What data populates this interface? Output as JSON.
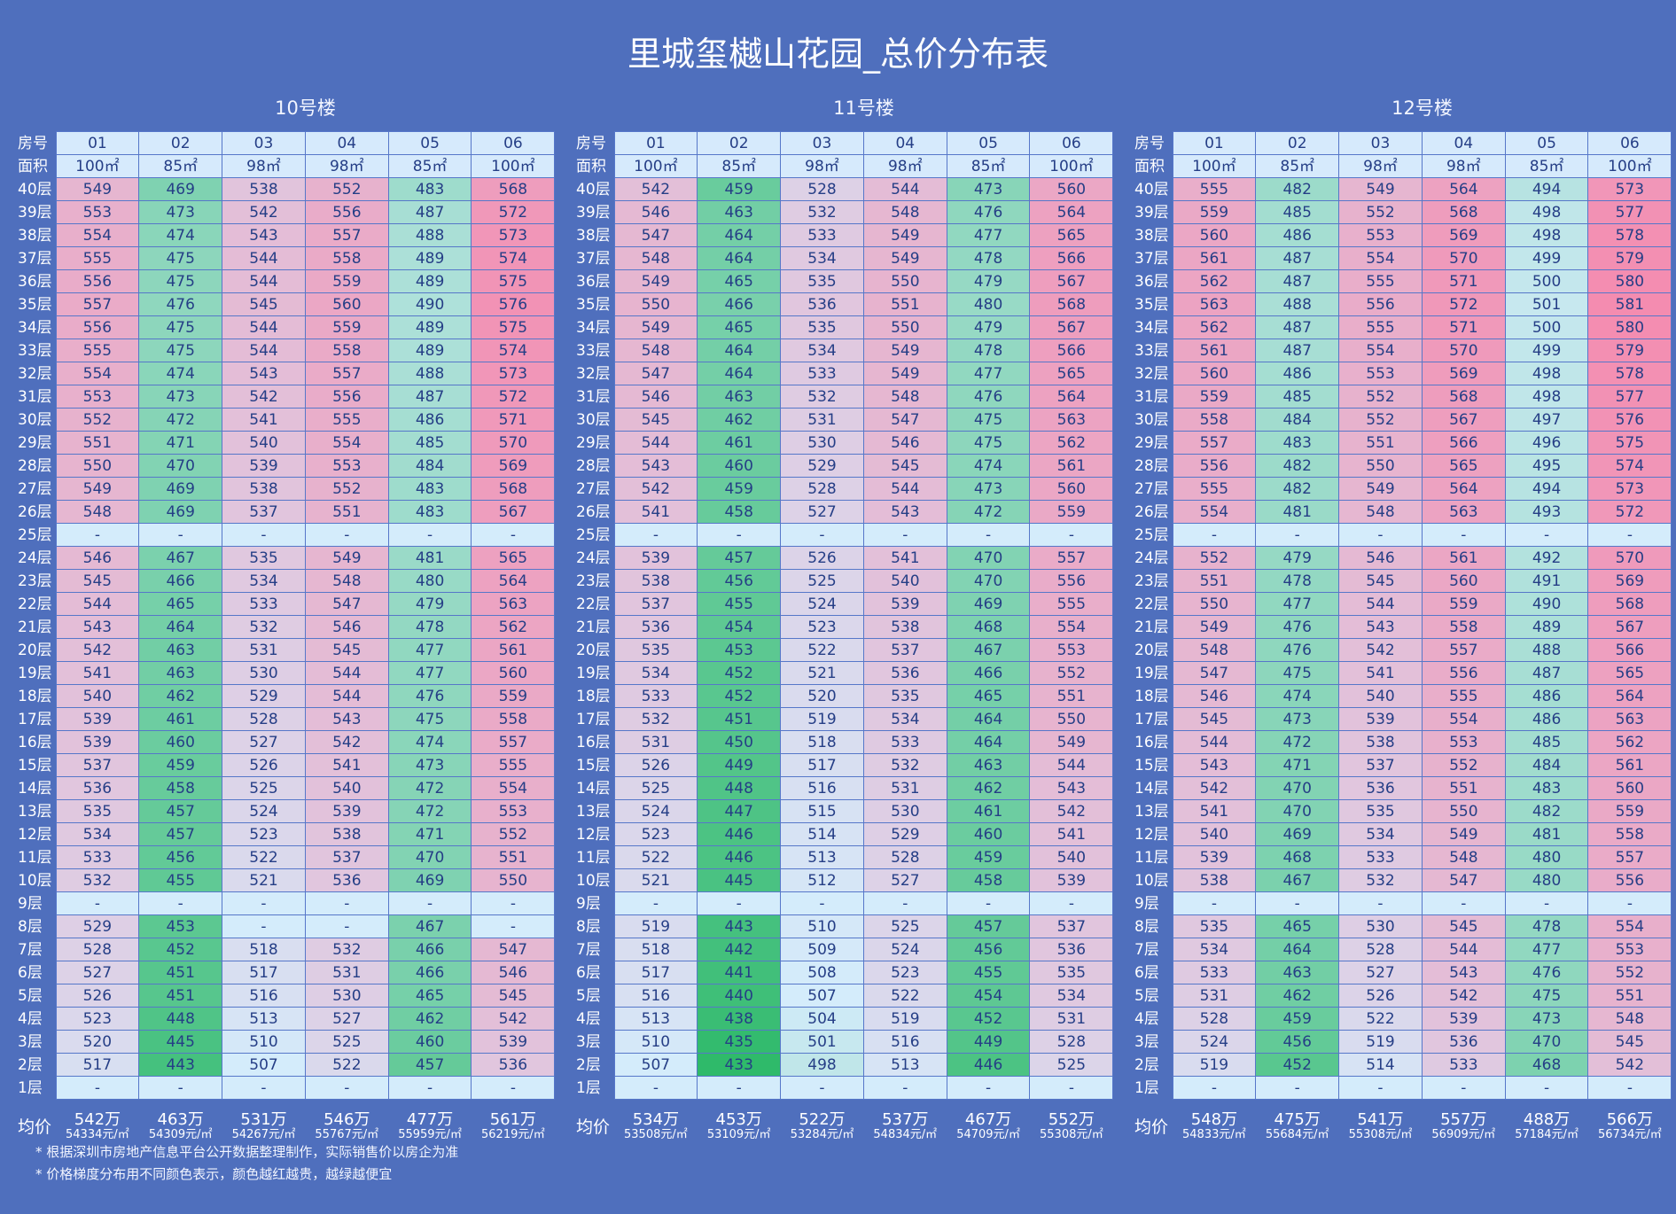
{
  "title": "里城玺樾山花园_总价分布表",
  "header_labels": {
    "room": "房号",
    "area": "面积",
    "avg": "均价"
  },
  "floors": [
    "40层",
    "39层",
    "38层",
    "37层",
    "36层",
    "35层",
    "34层",
    "33层",
    "32层",
    "31层",
    "30层",
    "29层",
    "28层",
    "27层",
    "26层",
    "25层",
    "24层",
    "23层",
    "22层",
    "21层",
    "20层",
    "19层",
    "18层",
    "17层",
    "16层",
    "15层",
    "14层",
    "13层",
    "12层",
    "11层",
    "10层",
    "9层",
    "8层",
    "7层",
    "6层",
    "5层",
    "4层",
    "3层",
    "2层",
    "1层"
  ],
  "rooms": [
    "01",
    "02",
    "03",
    "04",
    "05",
    "06"
  ],
  "areas": [
    "100㎡",
    "85㎡",
    "98㎡",
    "98㎡",
    "85㎡",
    "100㎡"
  ],
  "colors": {
    "green": "#2fba6a",
    "light": "#d4ecfb",
    "pink": "#f48cb0"
  },
  "color_scale": {
    "min": 433,
    "max": 581
  },
  "buildings": [
    {
      "name": "10号楼",
      "prices": [
        [
          "549",
          "469",
          "538",
          "552",
          "483",
          "568"
        ],
        [
          "553",
          "473",
          "542",
          "556",
          "487",
          "572"
        ],
        [
          "554",
          "474",
          "543",
          "557",
          "488",
          "573"
        ],
        [
          "555",
          "475",
          "544",
          "558",
          "489",
          "574"
        ],
        [
          "556",
          "475",
          "544",
          "559",
          "489",
          "575"
        ],
        [
          "557",
          "476",
          "545",
          "560",
          "490",
          "576"
        ],
        [
          "556",
          "475",
          "544",
          "559",
          "489",
          "575"
        ],
        [
          "555",
          "475",
          "544",
          "558",
          "489",
          "574"
        ],
        [
          "554",
          "474",
          "543",
          "557",
          "488",
          "573"
        ],
        [
          "553",
          "473",
          "542",
          "556",
          "487",
          "572"
        ],
        [
          "552",
          "472",
          "541",
          "555",
          "486",
          "571"
        ],
        [
          "551",
          "471",
          "540",
          "554",
          "485",
          "570"
        ],
        [
          "550",
          "470",
          "539",
          "553",
          "484",
          "569"
        ],
        [
          "549",
          "469",
          "538",
          "552",
          "483",
          "568"
        ],
        [
          "548",
          "469",
          "537",
          "551",
          "483",
          "567"
        ],
        [
          "-",
          "-",
          "-",
          "-",
          "-",
          "-"
        ],
        [
          "546",
          "467",
          "535",
          "549",
          "481",
          "565"
        ],
        [
          "545",
          "466",
          "534",
          "548",
          "480",
          "564"
        ],
        [
          "544",
          "465",
          "533",
          "547",
          "479",
          "563"
        ],
        [
          "543",
          "464",
          "532",
          "546",
          "478",
          "562"
        ],
        [
          "542",
          "463",
          "531",
          "545",
          "477",
          "561"
        ],
        [
          "541",
          "463",
          "530",
          "544",
          "477",
          "560"
        ],
        [
          "540",
          "462",
          "529",
          "544",
          "476",
          "559"
        ],
        [
          "539",
          "461",
          "528",
          "543",
          "475",
          "558"
        ],
        [
          "539",
          "460",
          "527",
          "542",
          "474",
          "557"
        ],
        [
          "537",
          "459",
          "526",
          "541",
          "473",
          "555"
        ],
        [
          "536",
          "458",
          "525",
          "540",
          "472",
          "554"
        ],
        [
          "535",
          "457",
          "524",
          "539",
          "472",
          "553"
        ],
        [
          "534",
          "457",
          "523",
          "538",
          "471",
          "552"
        ],
        [
          "533",
          "456",
          "522",
          "537",
          "470",
          "551"
        ],
        [
          "532",
          "455",
          "521",
          "536",
          "469",
          "550"
        ],
        [
          "-",
          "-",
          "-",
          "-",
          "-",
          "-"
        ],
        [
          "529",
          "453",
          "-",
          "-",
          "467",
          "-"
        ],
        [
          "528",
          "452",
          "518",
          "532",
          "466",
          "547"
        ],
        [
          "527",
          "451",
          "517",
          "531",
          "466",
          "546"
        ],
        [
          "526",
          "451",
          "516",
          "530",
          "465",
          "545"
        ],
        [
          "523",
          "448",
          "513",
          "527",
          "462",
          "542"
        ],
        [
          "520",
          "445",
          "510",
          "525",
          "460",
          "539"
        ],
        [
          "517",
          "443",
          "507",
          "522",
          "457",
          "536"
        ],
        [
          "-",
          "-",
          "-",
          "-",
          "-",
          "-"
        ]
      ],
      "avg_total": [
        "542万",
        "463万",
        "531万",
        "546万",
        "477万",
        "561万"
      ],
      "avg_unit": [
        "54334元/㎡",
        "54309元/㎡",
        "54267元/㎡",
        "55767元/㎡",
        "55959元/㎡",
        "56219元/㎡"
      ]
    },
    {
      "name": "11号楼",
      "prices": [
        [
          "542",
          "459",
          "528",
          "544",
          "473",
          "560"
        ],
        [
          "546",
          "463",
          "532",
          "548",
          "476",
          "564"
        ],
        [
          "547",
          "464",
          "533",
          "549",
          "477",
          "565"
        ],
        [
          "548",
          "464",
          "534",
          "549",
          "478",
          "566"
        ],
        [
          "549",
          "465",
          "535",
          "550",
          "479",
          "567"
        ],
        [
          "550",
          "466",
          "536",
          "551",
          "480",
          "568"
        ],
        [
          "549",
          "465",
          "535",
          "550",
          "479",
          "567"
        ],
        [
          "548",
          "464",
          "534",
          "549",
          "478",
          "566"
        ],
        [
          "547",
          "464",
          "533",
          "549",
          "477",
          "565"
        ],
        [
          "546",
          "463",
          "532",
          "548",
          "476",
          "564"
        ],
        [
          "545",
          "462",
          "531",
          "547",
          "475",
          "563"
        ],
        [
          "544",
          "461",
          "530",
          "546",
          "475",
          "562"
        ],
        [
          "543",
          "460",
          "529",
          "545",
          "474",
          "561"
        ],
        [
          "542",
          "459",
          "528",
          "544",
          "473",
          "560"
        ],
        [
          "541",
          "458",
          "527",
          "543",
          "472",
          "559"
        ],
        [
          "-",
          "-",
          "-",
          "-",
          "-",
          "-"
        ],
        [
          "539",
          "457",
          "526",
          "541",
          "470",
          "557"
        ],
        [
          "538",
          "456",
          "525",
          "540",
          "470",
          "556"
        ],
        [
          "537",
          "455",
          "524",
          "539",
          "469",
          "555"
        ],
        [
          "536",
          "454",
          "523",
          "538",
          "468",
          "554"
        ],
        [
          "535",
          "453",
          "522",
          "537",
          "467",
          "553"
        ],
        [
          "534",
          "452",
          "521",
          "536",
          "466",
          "552"
        ],
        [
          "533",
          "452",
          "520",
          "535",
          "465",
          "551"
        ],
        [
          "532",
          "451",
          "519",
          "534",
          "464",
          "550"
        ],
        [
          "531",
          "450",
          "518",
          "533",
          "464",
          "549"
        ],
        [
          "526",
          "449",
          "517",
          "532",
          "463",
          "544"
        ],
        [
          "525",
          "448",
          "516",
          "531",
          "462",
          "543"
        ],
        [
          "524",
          "447",
          "515",
          "530",
          "461",
          "542"
        ],
        [
          "523",
          "446",
          "514",
          "529",
          "460",
          "541"
        ],
        [
          "522",
          "446",
          "513",
          "528",
          "459",
          "540"
        ],
        [
          "521",
          "445",
          "512",
          "527",
          "458",
          "539"
        ],
        [
          "-",
          "-",
          "-",
          "-",
          "-",
          "-"
        ],
        [
          "519",
          "443",
          "510",
          "525",
          "457",
          "537"
        ],
        [
          "518",
          "442",
          "509",
          "524",
          "456",
          "536"
        ],
        [
          "517",
          "441",
          "508",
          "523",
          "455",
          "535"
        ],
        [
          "516",
          "440",
          "507",
          "522",
          "454",
          "534"
        ],
        [
          "513",
          "438",
          "504",
          "519",
          "452",
          "531"
        ],
        [
          "510",
          "435",
          "501",
          "516",
          "449",
          "528"
        ],
        [
          "507",
          "433",
          "498",
          "513",
          "446",
          "525"
        ],
        [
          "-",
          "-",
          "-",
          "-",
          "-",
          "-"
        ]
      ],
      "avg_total": [
        "534万",
        "453万",
        "522万",
        "537万",
        "467万",
        "552万"
      ],
      "avg_unit": [
        "53508元/㎡",
        "53109元/㎡",
        "53284元/㎡",
        "54834元/㎡",
        "54709元/㎡",
        "55308元/㎡"
      ]
    },
    {
      "name": "12号楼",
      "prices": [
        [
          "555",
          "482",
          "549",
          "564",
          "494",
          "573"
        ],
        [
          "559",
          "485",
          "552",
          "568",
          "498",
          "577"
        ],
        [
          "560",
          "486",
          "553",
          "569",
          "498",
          "578"
        ],
        [
          "561",
          "487",
          "554",
          "570",
          "499",
          "579"
        ],
        [
          "562",
          "487",
          "555",
          "571",
          "500",
          "580"
        ],
        [
          "563",
          "488",
          "556",
          "572",
          "501",
          "581"
        ],
        [
          "562",
          "487",
          "555",
          "571",
          "500",
          "580"
        ],
        [
          "561",
          "487",
          "554",
          "570",
          "499",
          "579"
        ],
        [
          "560",
          "486",
          "553",
          "569",
          "498",
          "578"
        ],
        [
          "559",
          "485",
          "552",
          "568",
          "498",
          "577"
        ],
        [
          "558",
          "484",
          "552",
          "567",
          "497",
          "576"
        ],
        [
          "557",
          "483",
          "551",
          "566",
          "496",
          "575"
        ],
        [
          "556",
          "482",
          "550",
          "565",
          "495",
          "574"
        ],
        [
          "555",
          "482",
          "549",
          "564",
          "494",
          "573"
        ],
        [
          "554",
          "481",
          "548",
          "563",
          "493",
          "572"
        ],
        [
          "-",
          "-",
          "-",
          "-",
          "-",
          "-"
        ],
        [
          "552",
          "479",
          "546",
          "561",
          "492",
          "570"
        ],
        [
          "551",
          "478",
          "545",
          "560",
          "491",
          "569"
        ],
        [
          "550",
          "477",
          "544",
          "559",
          "490",
          "568"
        ],
        [
          "549",
          "476",
          "543",
          "558",
          "489",
          "567"
        ],
        [
          "548",
          "476",
          "542",
          "557",
          "488",
          "566"
        ],
        [
          "547",
          "475",
          "541",
          "556",
          "487",
          "565"
        ],
        [
          "546",
          "474",
          "540",
          "555",
          "486",
          "564"
        ],
        [
          "545",
          "473",
          "539",
          "554",
          "486",
          "563"
        ],
        [
          "544",
          "472",
          "538",
          "553",
          "485",
          "562"
        ],
        [
          "543",
          "471",
          "537",
          "552",
          "484",
          "561"
        ],
        [
          "542",
          "470",
          "536",
          "551",
          "483",
          "560"
        ],
        [
          "541",
          "470",
          "535",
          "550",
          "482",
          "559"
        ],
        [
          "540",
          "469",
          "534",
          "549",
          "481",
          "558"
        ],
        [
          "539",
          "468",
          "533",
          "548",
          "480",
          "557"
        ],
        [
          "538",
          "467",
          "532",
          "547",
          "480",
          "556"
        ],
        [
          "-",
          "-",
          "-",
          "-",
          "-",
          "-"
        ],
        [
          "535",
          "465",
          "530",
          "545",
          "478",
          "554"
        ],
        [
          "534",
          "464",
          "528",
          "544",
          "477",
          "553"
        ],
        [
          "533",
          "463",
          "527",
          "543",
          "476",
          "552"
        ],
        [
          "531",
          "462",
          "526",
          "542",
          "475",
          "551"
        ],
        [
          "528",
          "459",
          "522",
          "539",
          "473",
          "548"
        ],
        [
          "524",
          "456",
          "519",
          "536",
          "470",
          "545"
        ],
        [
          "519",
          "452",
          "514",
          "533",
          "468",
          "542"
        ],
        [
          "-",
          "-",
          "-",
          "-",
          "-",
          "-"
        ]
      ],
      "avg_total": [
        "548万",
        "475万",
        "541万",
        "557万",
        "488万",
        "566万"
      ],
      "avg_unit": [
        "54833元/㎡",
        "55684元/㎡",
        "55308元/㎡",
        "56909元/㎡",
        "57184元/㎡",
        "56734元/㎡"
      ]
    }
  ],
  "notes": [
    "* 根据深圳市房地产信息平台公开数据整理制作，实际销售价以房企为准",
    "* 价格梯度分布用不同颜色表示，颜色越红越贵，越绿越便宜"
  ]
}
